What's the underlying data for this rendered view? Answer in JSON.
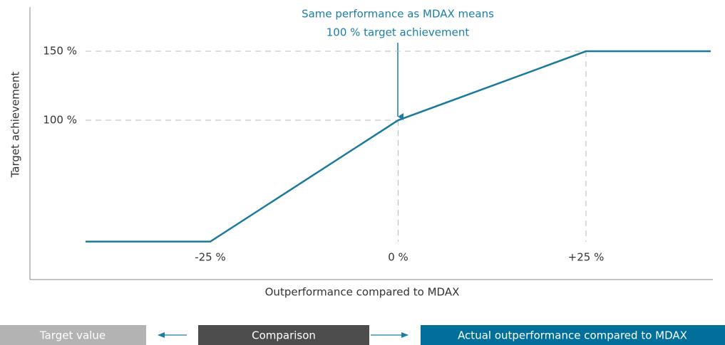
{
  "chart_data": {
    "type": "line",
    "x_label": "Outperformance compared to MDAX",
    "y_label": "Target achievement",
    "annotation": [
      "Same performance as MDAX means",
      "100 % target achievement"
    ],
    "x": [
      -41.6,
      -25,
      0,
      25,
      41.6
    ],
    "series": [
      {
        "color": "#1a7a9e",
        "values": [
          12,
          12,
          100,
          150,
          150
        ]
      }
    ],
    "xlim": [
      -41.6,
      41.6
    ],
    "ylim": [
      -15.5,
      182
    ],
    "xticks": [
      {
        "value": -25,
        "label": "-25 %"
      },
      {
        "value": 0,
        "label": "0 %"
      },
      {
        "value": 25,
        "label": "+25 %"
      }
    ],
    "yticks": [
      {
        "value": 100,
        "label": "100 %"
      },
      {
        "value": 150,
        "label": "150 %"
      }
    ],
    "grid": true
  },
  "footer": {
    "boxes": [
      "Target value",
      "Comparison",
      "Actual outperformance compared to MDAX"
    ]
  }
}
